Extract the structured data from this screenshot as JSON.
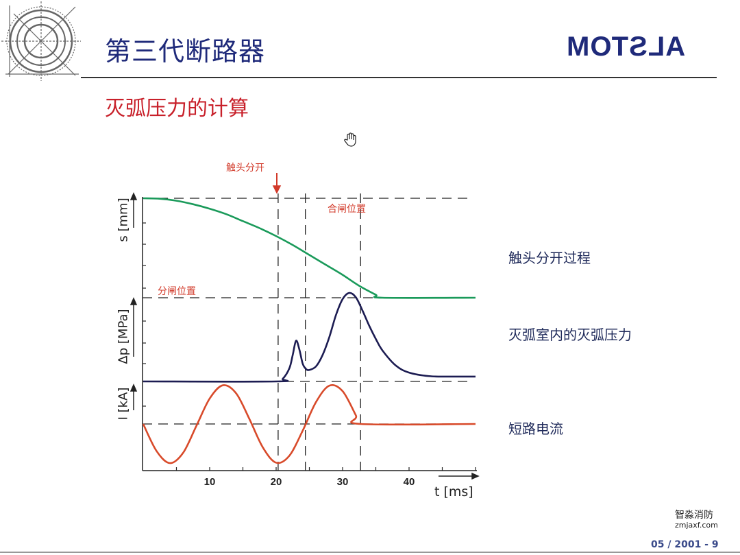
{
  "header": {
    "title": "第三代断路器",
    "subtitle": "灭弧压力的计算",
    "brand": "ALSTOM"
  },
  "side_labels": [
    "触头分开过程",
    "灭弧室内的灭弧压力",
    "短路电流"
  ],
  "footer": {
    "page": "05 / 2001 - 9",
    "watermark_name": "智淼消防",
    "watermark_url": "zmjaxf.com"
  },
  "colors": {
    "title": "#1f2a7a",
    "subtitle": "#c8202a",
    "s_curve": "#1a9a5a",
    "p_curve": "#1c1c52",
    "i_curve": "#d84a2a",
    "annotation": "#d23a2a"
  },
  "icons": [
    "breaker-logo-icon",
    "hand-cursor-icon"
  ],
  "chart_data": {
    "type": "line",
    "xlabel": "t [ms]",
    "xlim": [
      0,
      50
    ],
    "xticks": [
      10,
      20,
      30,
      40
    ],
    "grid": false,
    "annotations": {
      "contact_separation": "触头分开",
      "closed_position": "合闸位置",
      "open_position": "分闸位置"
    },
    "marker_lines_t": [
      20.3,
      24.4,
      32.7
    ],
    "panels": [
      {
        "ylabel": "s [mm]",
        "color": "#1a9a5a",
        "x": [
          0,
          2.5,
          5,
          7.5,
          10,
          12.5,
          15,
          17.5,
          20,
          22.5,
          25,
          27.5,
          30,
          32.5,
          35,
          36,
          50
        ],
        "y": [
          1,
          0.995,
          0.975,
          0.94,
          0.895,
          0.84,
          0.77,
          0.7,
          0.62,
          0.53,
          0.43,
          0.33,
          0.23,
          0.12,
          0.03,
          0,
          0
        ]
      },
      {
        "ylabel": "Δp [MPa]",
        "color": "#1c1c52",
        "x": [
          0,
          20,
          21,
          22,
          22.5,
          23,
          23.5,
          24,
          24.5,
          25,
          26,
          27,
          28,
          29,
          30,
          31,
          32,
          33,
          34,
          35,
          36,
          38,
          40,
          43,
          46,
          50
        ],
        "y": [
          0,
          0,
          0.03,
          0.15,
          0.3,
          0.46,
          0.36,
          0.2,
          0.14,
          0.13,
          0.17,
          0.3,
          0.5,
          0.75,
          0.93,
          1.0,
          0.95,
          0.8,
          0.63,
          0.48,
          0.35,
          0.18,
          0.1,
          0.06,
          0.055,
          0.055
        ]
      },
      {
        "ylabel": "I [kA]",
        "color": "#d84a2a",
        "x": [
          0,
          2,
          4,
          6,
          8,
          10,
          12,
          14,
          16,
          18,
          20,
          22,
          24,
          26,
          28,
          30,
          32,
          32.7,
          50
        ],
        "y": [
          0,
          -0.69,
          -1.0,
          -0.74,
          -0.05,
          0.65,
          0.99,
          0.78,
          0.12,
          -0.6,
          -0.99,
          -0.81,
          -0.17,
          0.56,
          0.98,
          0.84,
          0.22,
          0,
          0
        ]
      }
    ]
  }
}
